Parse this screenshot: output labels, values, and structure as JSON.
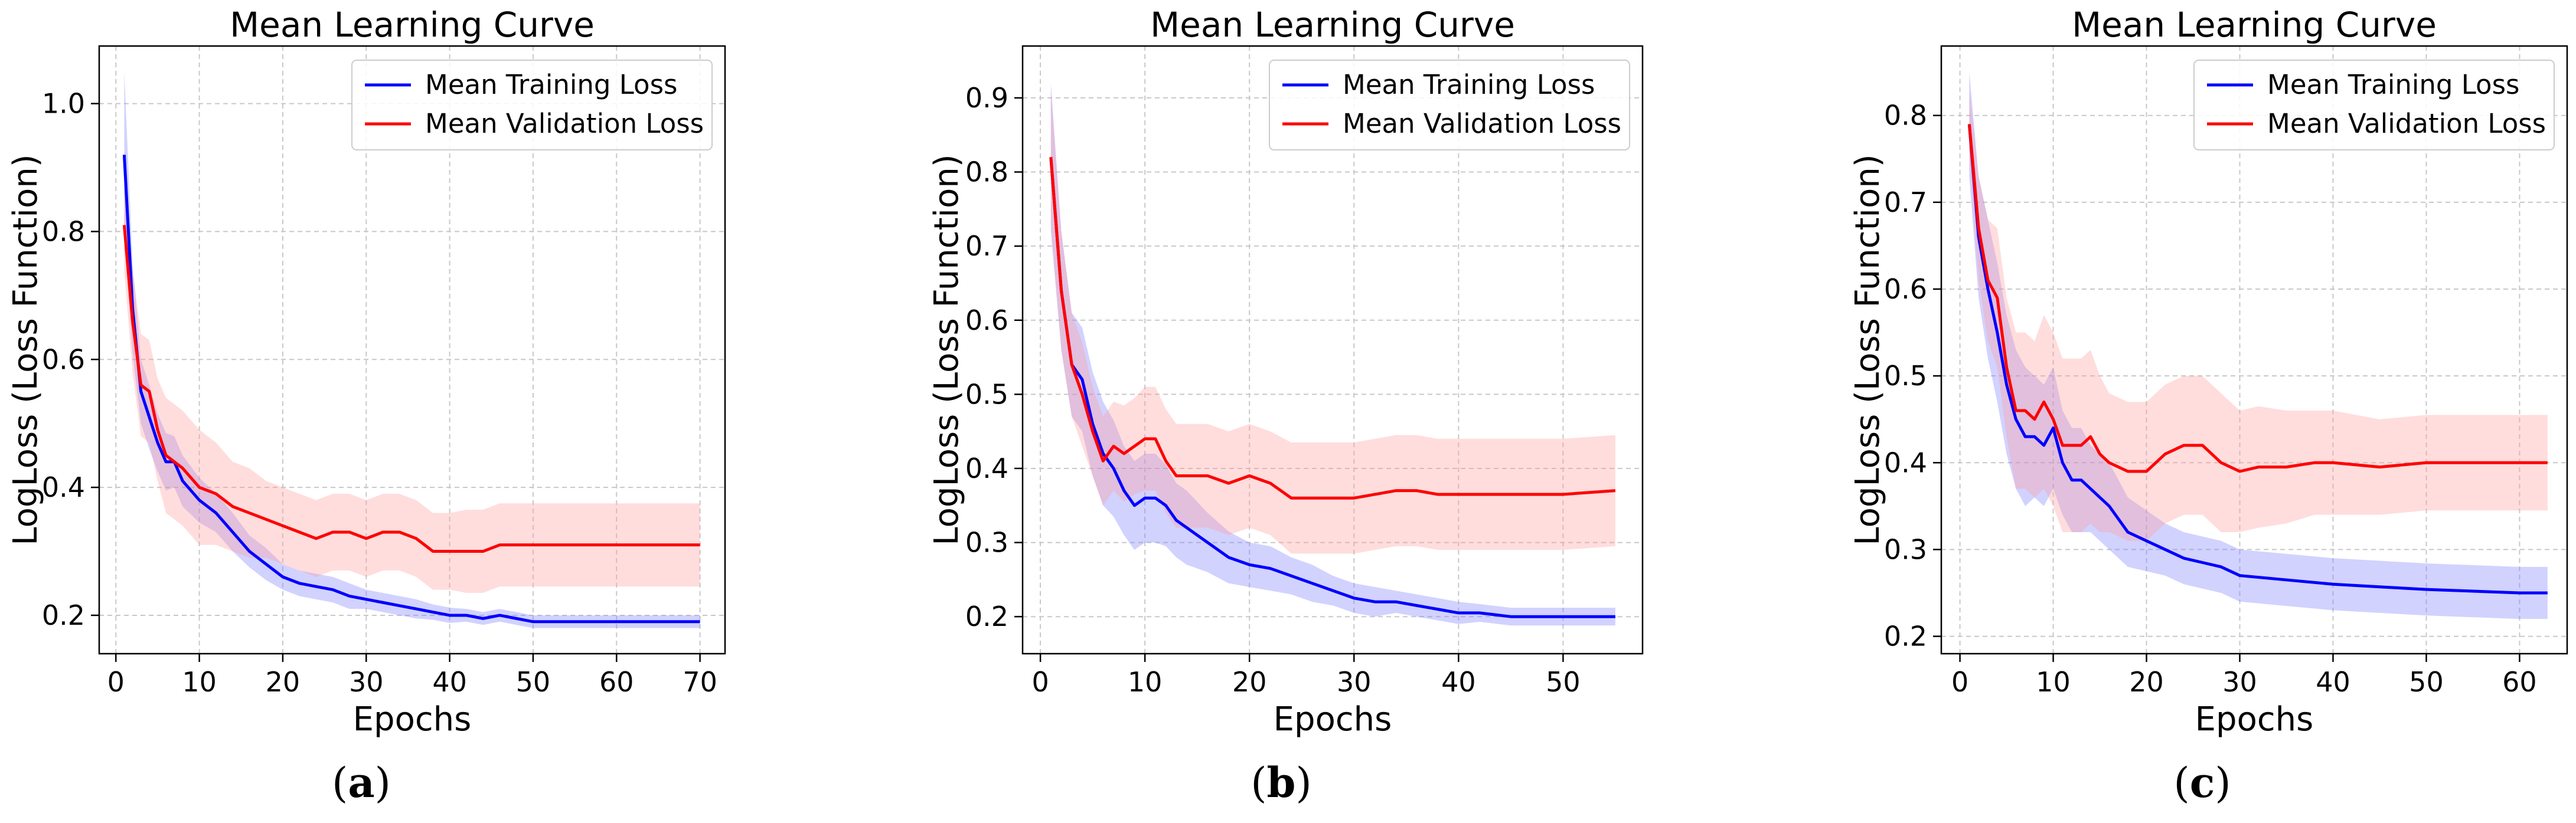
{
  "chart_data": [
    {
      "type": "line",
      "panel_label": "a",
      "title": "Mean Learning Curve",
      "xlabel": "Epochs",
      "ylabel": "LogLoss (Loss Function)",
      "xlim": [
        -2,
        73
      ],
      "ylim": [
        0.14,
        1.09
      ],
      "xticks": [
        0,
        10,
        20,
        30,
        40,
        50,
        60,
        70
      ],
      "yticks": [
        0.2,
        0.4,
        0.6,
        0.8,
        1.0
      ],
      "ytick_labels": [
        "0.2",
        "0.4",
        "0.6",
        "0.8",
        "1.0"
      ],
      "grid": true,
      "legend": "top-right",
      "series": [
        {
          "name": "Mean Training Loss",
          "color": "#0000ff",
          "band_color": "#7f7fff",
          "x": [
            1,
            2,
            3,
            4,
            5,
            6,
            7,
            8,
            10,
            12,
            14,
            16,
            18,
            20,
            22,
            24,
            26,
            28,
            30,
            32,
            34,
            36,
            38,
            40,
            42,
            44,
            46,
            48,
            50,
            55,
            60,
            65,
            70
          ],
          "y": [
            0.92,
            0.68,
            0.55,
            0.51,
            0.47,
            0.44,
            0.44,
            0.41,
            0.38,
            0.36,
            0.33,
            0.3,
            0.28,
            0.26,
            0.25,
            0.245,
            0.24,
            0.23,
            0.225,
            0.22,
            0.215,
            0.21,
            0.205,
            0.2,
            0.2,
            0.195,
            0.2,
            0.195,
            0.19,
            0.19,
            0.19,
            0.19,
            0.19
          ],
          "band": [
            0.13,
            0.07,
            0.05,
            0.05,
            0.045,
            0.045,
            0.04,
            0.04,
            0.035,
            0.03,
            0.03,
            0.025,
            0.025,
            0.02,
            0.02,
            0.02,
            0.02,
            0.02,
            0.015,
            0.015,
            0.015,
            0.015,
            0.012,
            0.012,
            0.01,
            0.01,
            0.01,
            0.01,
            0.01,
            0.01,
            0.01,
            0.01,
            0.01
          ]
        },
        {
          "name": "Mean Validation Loss",
          "color": "#ff0000",
          "band_color": "#ff9f9f",
          "x": [
            1,
            2,
            3,
            4,
            5,
            6,
            7,
            8,
            10,
            12,
            14,
            16,
            18,
            20,
            22,
            24,
            26,
            28,
            30,
            32,
            34,
            36,
            38,
            40,
            42,
            44,
            46,
            48,
            50,
            55,
            60,
            65,
            70
          ],
          "y": [
            0.81,
            0.66,
            0.56,
            0.55,
            0.49,
            0.45,
            0.44,
            0.43,
            0.4,
            0.39,
            0.37,
            0.36,
            0.35,
            0.34,
            0.33,
            0.32,
            0.33,
            0.33,
            0.32,
            0.33,
            0.33,
            0.32,
            0.3,
            0.3,
            0.3,
            0.3,
            0.31,
            0.31,
            0.31,
            0.31,
            0.31,
            0.31,
            0.31
          ],
          "band": [
            0.07,
            0.08,
            0.08,
            0.08,
            0.08,
            0.09,
            0.09,
            0.09,
            0.09,
            0.08,
            0.07,
            0.07,
            0.06,
            0.06,
            0.06,
            0.06,
            0.06,
            0.06,
            0.06,
            0.06,
            0.06,
            0.06,
            0.06,
            0.06,
            0.065,
            0.065,
            0.065,
            0.065,
            0.065,
            0.065,
            0.065,
            0.065,
            0.065
          ]
        }
      ]
    },
    {
      "type": "line",
      "panel_label": "b",
      "title": "Mean Learning Curve",
      "xlabel": "Epochs",
      "ylabel": "LogLoss (Loss Function)",
      "xlim": [
        -1.7,
        57.6
      ],
      "ylim": [
        0.15,
        0.97
      ],
      "xticks": [
        0,
        10,
        20,
        30,
        40,
        50
      ],
      "yticks": [
        0.2,
        0.3,
        0.4,
        0.5,
        0.6,
        0.7,
        0.8,
        0.9
      ],
      "ytick_labels": [
        "0.2",
        "0.3",
        "0.4",
        "0.5",
        "0.6",
        "0.7",
        "0.8",
        "0.9"
      ],
      "grid": true,
      "legend": "top-right",
      "series": [
        {
          "name": "Mean Training Loss",
          "color": "#0000ff",
          "band_color": "#7f7fff",
          "x": [
            1,
            2,
            3,
            4,
            5,
            6,
            7,
            8,
            9,
            10,
            11,
            12,
            13,
            14,
            15,
            16,
            18,
            20,
            22,
            24,
            26,
            28,
            30,
            32,
            34,
            36,
            38,
            40,
            42,
            45,
            50,
            55
          ],
          "y": [
            0.82,
            0.64,
            0.54,
            0.52,
            0.46,
            0.42,
            0.4,
            0.37,
            0.35,
            0.36,
            0.36,
            0.35,
            0.33,
            0.32,
            0.31,
            0.3,
            0.28,
            0.27,
            0.265,
            0.255,
            0.245,
            0.235,
            0.225,
            0.22,
            0.22,
            0.215,
            0.21,
            0.205,
            0.205,
            0.2,
            0.2,
            0.2
          ],
          "band": [
            0.1,
            0.08,
            0.07,
            0.07,
            0.07,
            0.07,
            0.065,
            0.06,
            0.06,
            0.06,
            0.06,
            0.055,
            0.05,
            0.05,
            0.045,
            0.04,
            0.035,
            0.03,
            0.03,
            0.025,
            0.025,
            0.02,
            0.02,
            0.02,
            0.015,
            0.015,
            0.015,
            0.015,
            0.012,
            0.012,
            0.012,
            0.012
          ]
        },
        {
          "name": "Mean Validation Loss",
          "color": "#ff0000",
          "band_color": "#ff9f9f",
          "x": [
            1,
            2,
            3,
            4,
            5,
            6,
            7,
            8,
            9,
            10,
            11,
            12,
            13,
            14,
            15,
            16,
            18,
            20,
            22,
            24,
            26,
            28,
            30,
            32,
            34,
            36,
            38,
            40,
            42,
            45,
            50,
            55
          ],
          "y": [
            0.82,
            0.64,
            0.54,
            0.5,
            0.45,
            0.41,
            0.43,
            0.42,
            0.43,
            0.44,
            0.44,
            0.41,
            0.39,
            0.39,
            0.39,
            0.39,
            0.38,
            0.39,
            0.38,
            0.36,
            0.36,
            0.36,
            0.36,
            0.365,
            0.37,
            0.37,
            0.365,
            0.365,
            0.365,
            0.365,
            0.365,
            0.37
          ],
          "band": [
            0.09,
            0.08,
            0.07,
            0.07,
            0.06,
            0.06,
            0.06,
            0.065,
            0.065,
            0.07,
            0.07,
            0.07,
            0.07,
            0.07,
            0.07,
            0.07,
            0.07,
            0.07,
            0.07,
            0.075,
            0.075,
            0.075,
            0.075,
            0.075,
            0.075,
            0.075,
            0.075,
            0.075,
            0.075,
            0.075,
            0.075,
            0.075
          ]
        }
      ]
    },
    {
      "type": "line",
      "panel_label": "c",
      "title": "Mean Learning Curve",
      "xlabel": "Epochs",
      "ylabel": "LogLoss (Loss Function)",
      "xlim": [
        -2,
        65.1
      ],
      "ylim": [
        0.18,
        0.88
      ],
      "xticks": [
        0,
        10,
        20,
        30,
        40,
        50,
        60
      ],
      "yticks": [
        0.2,
        0.3,
        0.4,
        0.5,
        0.6,
        0.7,
        0.8
      ],
      "ytick_labels": [
        "0.2",
        "0.3",
        "0.4",
        "0.5",
        "0.6",
        "0.7",
        "0.8"
      ],
      "grid": true,
      "legend": "top-right",
      "series": [
        {
          "name": "Mean Training Loss",
          "color": "#0000ff",
          "band_color": "#7f7fff",
          "x": [
            1,
            2,
            3,
            4,
            5,
            6,
            7,
            8,
            9,
            10,
            11,
            12,
            13,
            14,
            15,
            16,
            18,
            20,
            22,
            24,
            26,
            28,
            30,
            35,
            40,
            45,
            50,
            55,
            60,
            63
          ],
          "y": [
            0.79,
            0.66,
            0.6,
            0.55,
            0.49,
            0.45,
            0.43,
            0.43,
            0.42,
            0.44,
            0.4,
            0.38,
            0.38,
            0.37,
            0.36,
            0.35,
            0.32,
            0.31,
            0.3,
            0.29,
            0.285,
            0.28,
            0.27,
            0.265,
            0.26,
            0.257,
            0.254,
            0.252,
            0.25,
            0.25
          ],
          "band": [
            0.06,
            0.07,
            0.08,
            0.08,
            0.08,
            0.08,
            0.08,
            0.07,
            0.07,
            0.07,
            0.06,
            0.06,
            0.06,
            0.05,
            0.05,
            0.05,
            0.04,
            0.035,
            0.03,
            0.03,
            0.03,
            0.03,
            0.03,
            0.03,
            0.03,
            0.03,
            0.03,
            0.03,
            0.03,
            0.03
          ]
        },
        {
          "name": "Mean Validation Loss",
          "color": "#ff0000",
          "band_color": "#ff9f9f",
          "x": [
            1,
            2,
            3,
            4,
            5,
            6,
            7,
            8,
            9,
            10,
            11,
            12,
            13,
            14,
            15,
            16,
            18,
            20,
            22,
            24,
            26,
            28,
            30,
            32,
            35,
            38,
            40,
            45,
            50,
            55,
            60,
            63
          ],
          "y": [
            0.79,
            0.67,
            0.61,
            0.59,
            0.51,
            0.46,
            0.46,
            0.45,
            0.47,
            0.45,
            0.42,
            0.42,
            0.42,
            0.43,
            0.41,
            0.4,
            0.39,
            0.39,
            0.41,
            0.42,
            0.42,
            0.4,
            0.39,
            0.395,
            0.395,
            0.4,
            0.4,
            0.395,
            0.4,
            0.4,
            0.4,
            0.4
          ],
          "band": [
            0.04,
            0.06,
            0.07,
            0.08,
            0.08,
            0.09,
            0.09,
            0.09,
            0.1,
            0.1,
            0.1,
            0.1,
            0.1,
            0.1,
            0.09,
            0.08,
            0.08,
            0.08,
            0.08,
            0.08,
            0.08,
            0.08,
            0.07,
            0.07,
            0.065,
            0.06,
            0.06,
            0.055,
            0.055,
            0.055,
            0.055,
            0.055
          ]
        }
      ]
    }
  ]
}
